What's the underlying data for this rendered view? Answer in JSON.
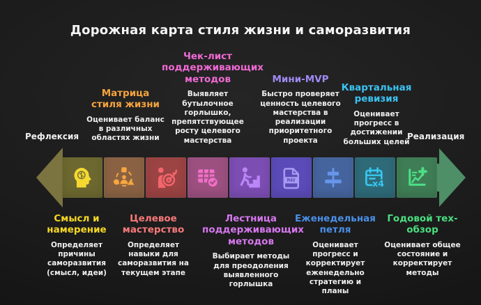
{
  "title": "Дорожная карта стиля жизни и саморазвития",
  "flow": {
    "left_label": "Рефлексия",
    "right_label": "Реализация"
  },
  "colors": {
    "background": "#1c1c1c",
    "title_text": "#f5f5f5",
    "body_text": "#efefef",
    "left_arrow": "#7b7340",
    "right_arrow": "#4e8f67"
  },
  "stages": [
    {
      "name": "Смысл и\nнамерение",
      "description": "Определяет\nпричины\nсаморазвития\n(смысл, идеи)",
      "label_position": "bottom",
      "label_color": "#f6d824",
      "block_color": "#6c682f",
      "icon_color": "#f5d832",
      "icon": "head-brain-icon"
    },
    {
      "name": "Матрица\nстиля жизни",
      "description": "Оценивает баланс\nв различных\nобластях жизни",
      "label_position": "top",
      "label_color": "#f5a33c",
      "block_color": "#8a6243",
      "icon_color": "#f7a63e",
      "icon": "shapes-person-icon"
    },
    {
      "name": "Целевое\nмастерство",
      "description": "Определяет\nнавыки для\nсаморазвития на\nтекущем этапе",
      "label_position": "bottom",
      "label_color": "#f7797a",
      "block_color": "#9c4343",
      "icon_color": "#f2666c",
      "icon": "person-target-icon"
    },
    {
      "name": "Чек-лист\nподдерживающих\nметодов",
      "description": "Выявляет\nбутылочное\nгорлышко,\nпрепятствующее\nросту целевого\nмастерства",
      "label_position": "top",
      "label_color": "#f06ad4",
      "block_color": "#9c5080",
      "icon_color": "#f170c8",
      "icon": "table-check-icon"
    },
    {
      "name": "Лестница\nподдерживающих\nметодов",
      "description": "Выбирает методы\nдля преодоления\nвыявленного\nгорлышка",
      "label_position": "bottom",
      "label_color": "#d678ef",
      "block_color": "#7c4db3",
      "icon_color": "#bb86f5",
      "icon": "person-stairs-icon"
    },
    {
      "name": "Мини-MVP",
      "description": "Быстро проверяет\nценность целевого\nмастерства в\nреализации\nприоритетного\nпроекта",
      "label_position": "top",
      "label_color": "#9f8af2",
      "block_color": "#5a4bb8",
      "icon_color": "#a89af0",
      "icon": "m4v-file-icon"
    },
    {
      "name": "Еженедельная\nпетля",
      "description": "Оценивает\nпрогресс и\nкорректирует\nеженедельно\nстратегию и\nпланы",
      "label_position": "bottom",
      "label_color": "#4a8fe8",
      "block_color": "#45649e",
      "icon_color": "#6695ea",
      "icon": "align-center-icon"
    },
    {
      "name": "Квартальная\nревизия",
      "description": "Оценивает\nпрогресс в\nдостижении\nбольших целей",
      "label_position": "top",
      "label_color": "#3bc3f2",
      "block_color": "#2e6a78",
      "icon_color": "#37c8f2",
      "icon": "calendar-x4-icon"
    },
    {
      "name": "Годовой тех-\nобзор",
      "description": "Оценивает общее\nсостояние и\nкорректирует\nметоды",
      "label_position": "bottom",
      "label_color": "#4ade80",
      "block_color": "#3f7d56",
      "icon_color": "#4be085",
      "icon": "chart-plus-icon"
    }
  ]
}
